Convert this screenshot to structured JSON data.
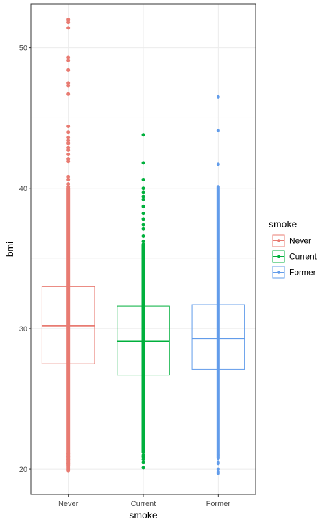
{
  "chart_data": {
    "type": "boxplot",
    "xlabel": "smoke",
    "ylabel": "bmi",
    "ylim": [
      18.2,
      53.1
    ],
    "y_ticks": [
      20,
      30,
      40,
      50
    ],
    "categories": [
      "Never",
      "Current",
      "Former"
    ],
    "grid": true,
    "legend": {
      "title": "smoke",
      "position": "right",
      "entries": [
        "Never",
        "Current",
        "Former"
      ]
    },
    "series": [
      {
        "name": "Never",
        "color": "#e87b72",
        "q1": 27.5,
        "median": 30.2,
        "q3": 33.0,
        "points_range": [
          20.2,
          40.0
        ],
        "points": [
          19.9,
          20.0,
          20.1,
          20.4,
          20.7,
          20.9,
          21.1,
          40.1,
          40.3,
          40.6,
          40.8,
          41.9,
          42.1,
          42.4,
          42.7,
          42.9,
          43.2,
          43.4,
          43.6,
          44.0,
          44.4,
          46.7,
          47.3,
          47.5,
          48.4,
          49.1,
          49.3,
          51.4,
          51.8,
          52.0
        ]
      },
      {
        "name": "Current",
        "color": "#00b03c",
        "q1": 26.7,
        "median": 29.1,
        "q3": 31.6,
        "points_range": [
          21.2,
          36.0
        ],
        "points": [
          20.1,
          20.5,
          20.7,
          20.9,
          21.0,
          36.2,
          36.6,
          37.1,
          37.4,
          37.8,
          38.2,
          38.7,
          39.2,
          39.4,
          39.7,
          40.0,
          40.6,
          41.8,
          43.8
        ]
      },
      {
        "name": "Former",
        "color": "#629cea",
        "q1": 27.1,
        "median": 29.3,
        "q3": 31.7,
        "points_range": [
          20.8,
          40.1
        ],
        "points": [
          19.7,
          19.8,
          20.0,
          20.4,
          20.5,
          20.8,
          21.0,
          41.7,
          44.1,
          46.5
        ]
      }
    ]
  }
}
